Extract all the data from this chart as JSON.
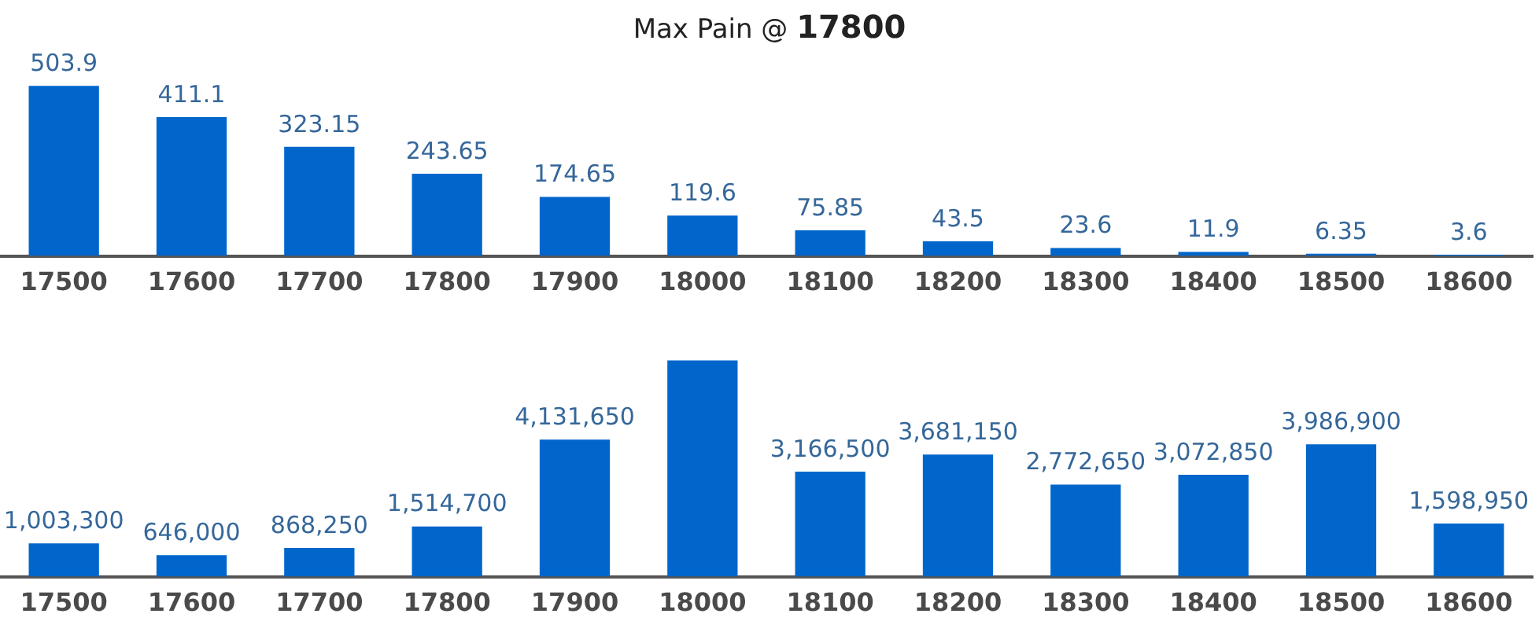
{
  "chart_data": [
    {
      "type": "bar",
      "title": "Max Pain @ 17800",
      "categories": [
        "17500",
        "17600",
        "17700",
        "17800",
        "17900",
        "18000",
        "18100",
        "18200",
        "18300",
        "18400",
        "18500",
        "18600"
      ],
      "values": [
        503.9,
        411.1,
        323.15,
        243.65,
        174.65,
        119.6,
        75.85,
        43.5,
        23.6,
        11.9,
        6.35,
        3.6
      ],
      "color": "#0066cc",
      "data_labels": true,
      "tick_labels": "x",
      "legend": false
    },
    {
      "type": "bar",
      "categories": [
        "17500",
        "17600",
        "17700",
        "17800",
        "17900",
        "18000",
        "18100",
        "18200",
        "18300",
        "18400",
        "18500",
        "18600"
      ],
      "values": [
        1003300,
        646000,
        868250,
        1514700,
        4131650,
        6520000,
        3166500,
        3681150,
        2772650,
        3072850,
        3986900,
        1598950
      ],
      "value_labels": [
        "1,003,300",
        "646,000",
        "868,250",
        "1,514,700",
        "4,131,650",
        null,
        "3,166,500",
        "3,681,150",
        "2,772,650",
        "3,072,850",
        "3,986,900",
        "1,598,950"
      ],
      "color": "#0066cc",
      "tick_labels": "x",
      "legend": false
    }
  ]
}
